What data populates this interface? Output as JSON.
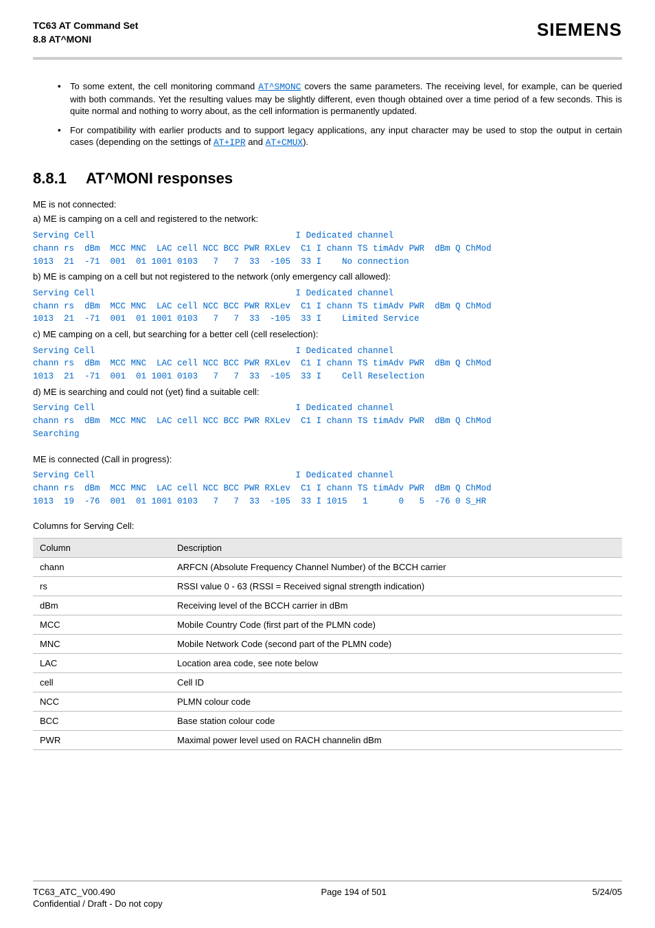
{
  "header": {
    "title_line1": "TC63 AT Command Set",
    "title_line2": "8.8 AT^MONI",
    "brand": "SIEMENS"
  },
  "bullets": [
    {
      "pre": "To some extent, the cell monitoring command ",
      "link": "AT^SMONC",
      "post": " covers the same parameters. The receiving level, for example, can be queried with both commands. Yet the resulting values may be slightly different, even though obtained over a time period of a few seconds. This is quite normal and nothing to worry about, as the cell information is permanently updated."
    },
    {
      "pre": "For compatibility with earlier products and to support legacy applications, any input character may be used to stop the output in certain cases (depending on the settings of ",
      "link": "AT+IPR",
      "mid": " and ",
      "link2": "AT+CMUX",
      "post": ")."
    }
  ],
  "section": {
    "num": "8.8.1",
    "title": "AT^MONI responses"
  },
  "blocks": {
    "intro1": "ME is not connected:",
    "a_label": "a) ME is camping on a cell and registered to the network:",
    "a_mono": "Serving Cell                                       I Dedicated channel\nchann rs  dBm  MCC MNC  LAC cell NCC BCC PWR RXLev  C1 I chann TS timAdv PWR  dBm Q ChMod\n1013  21  -71  001  01 1001 0103   7   7  33  -105  33 I    No connection",
    "b_label": "b) ME is camping on a cell but not registered to the network (only emergency call allowed):",
    "b_mono": "Serving Cell                                       I Dedicated channel\nchann rs  dBm  MCC MNC  LAC cell NCC BCC PWR RXLev  C1 I chann TS timAdv PWR  dBm Q ChMod\n1013  21  -71  001  01 1001 0103   7   7  33  -105  33 I    Limited Service",
    "c_label": "c) ME camping on a cell, but searching for a better cell (cell reselection):",
    "c_mono": "Serving Cell                                       I Dedicated channel\nchann rs  dBm  MCC MNC  LAC cell NCC BCC PWR RXLev  C1 I chann TS timAdv PWR  dBm Q ChMod\n1013  21  -71  001  01 1001 0103   7   7  33  -105  33 I    Cell Reselection",
    "d_label": "d) ME is searching and could not (yet) find a suitable cell:",
    "d_mono": "Serving Cell                                       I Dedicated channel\nchann rs  dBm  MCC MNC  LAC cell NCC BCC PWR RXLev  C1 I chann TS timAdv PWR  dBm Q ChMod\nSearching",
    "connected_label": "ME is connected (Call in progress):",
    "connected_mono": "Serving Cell                                       I Dedicated channel\nchann rs  dBm  MCC MNC  LAC cell NCC BCC PWR RXLev  C1 I chann TS timAdv PWR  dBm Q ChMod\n1013  19  -76  001  01 1001 0103   7   7  33  -105  33 I 1015   1      0   5  -76 0 S_HR",
    "columns_label": "Columns for Serving Cell:"
  },
  "table": {
    "headers": [
      "Column",
      "Description"
    ],
    "rows": [
      [
        "chann",
        "ARFCN (Absolute Frequency Channel Number) of the BCCH carrier"
      ],
      [
        "rs",
        "RSSI value 0 - 63 (RSSI = Received signal strength indication)"
      ],
      [
        "dBm",
        "Receiving level of the BCCH carrier in dBm"
      ],
      [
        "MCC",
        "Mobile Country Code (first part of the PLMN code)"
      ],
      [
        "MNC",
        "Mobile Network Code (second part of the PLMN code)"
      ],
      [
        "LAC",
        "Location area code, see note below"
      ],
      [
        "cell",
        "Cell ID"
      ],
      [
        "NCC",
        "PLMN colour code"
      ],
      [
        "BCC",
        "Base station colour code"
      ],
      [
        "PWR",
        "Maximal power level used on RACH channelin dBm"
      ]
    ]
  },
  "footer": {
    "left": "TC63_ATC_V00.490",
    "center": "Page 194 of 501",
    "right": "5/24/05",
    "line2": "Confidential / Draft - Do not copy"
  },
  "styling": {
    "link_color": "#0066cc",
    "hr_color": "#cccccc",
    "table_header_bg": "#e8e8e8",
    "table_border": "#bbbbbb",
    "mono_font": "Courier New",
    "body_font": "Arial",
    "body_fontsize": 13,
    "mono_fontsize": 12.5,
    "heading_fontsize": 22,
    "brand_fontsize": 26
  }
}
